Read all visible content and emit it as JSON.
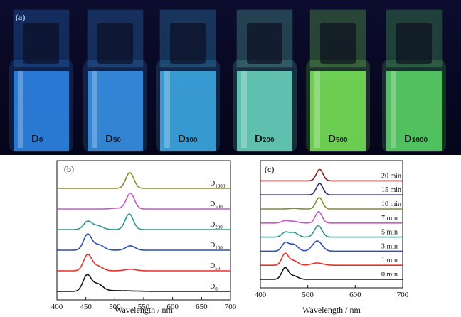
{
  "photo": {
    "panel_label": "(a)",
    "vials": [
      {
        "base": "D",
        "sub": "0",
        "color": "#2f8cf2"
      },
      {
        "base": "D",
        "sub": "50",
        "color": "#3a9bf3"
      },
      {
        "base": "D",
        "sub": "100",
        "color": "#3fb3ef"
      },
      {
        "base": "D",
        "sub": "200",
        "color": "#6fe0c8"
      },
      {
        "base": "D",
        "sub": "500",
        "color": "#7ef05a"
      },
      {
        "base": "D",
        "sub": "1000",
        "color": "#5fe06a"
      }
    ]
  },
  "chart_data": [
    {
      "type": "line",
      "panel_label": "(b)",
      "xlabel": "Wavelength / nm",
      "xlim": [
        400,
        700
      ],
      "xticks": [
        400,
        450,
        500,
        550,
        600,
        650,
        700
      ],
      "series": [
        {
          "name": "D0",
          "base": "D",
          "sub": "0",
          "color": "#111111",
          "peaks": [
            [
              452,
              1.0,
              7
            ],
            [
              470,
              0.45,
              9
            ],
            [
              500,
              0.05,
              30
            ]
          ]
        },
        {
          "name": "D50",
          "base": "D",
          "sub": "50",
          "color": "#e8302a",
          "peaks": [
            [
              453,
              1.0,
              7
            ],
            [
              470,
              0.3,
              9
            ],
            [
              527,
              0.1,
              10
            ]
          ]
        },
        {
          "name": "D100",
          "base": "D",
          "sub": "100",
          "color": "#2a4fb5",
          "peaks": [
            [
              453,
              1.0,
              7
            ],
            [
              472,
              0.35,
              9
            ],
            [
              527,
              0.28,
              8
            ]
          ]
        },
        {
          "name": "D200",
          "base": "D",
          "sub": "200",
          "color": "#2a9a8a",
          "peaks": [
            [
              453,
              0.5,
              7
            ],
            [
              470,
              0.25,
              9
            ],
            [
              525,
              1.0,
              7
            ]
          ]
        },
        {
          "name": "D500",
          "base": "D",
          "sub": "500",
          "color": "#c858c8",
          "peaks": [
            [
              527,
              1.0,
              7
            ],
            [
              505,
              0.05,
              10
            ]
          ]
        },
        {
          "name": "D1000",
          "base": "D",
          "sub": "1000",
          "color": "#8a8a30",
          "peaks": [
            [
              526,
              1.0,
              7
            ]
          ]
        }
      ]
    },
    {
      "type": "line",
      "panel_label": "(c)",
      "xlabel": "Wavelength / nm",
      "xlim": [
        400,
        700
      ],
      "xticks": [
        400,
        500,
        600,
        700
      ],
      "series": [
        {
          "name": "0 min",
          "color": "#111111",
          "peaks": [
            [
              452,
              1.0,
              7
            ],
            [
              470,
              0.3,
              9
            ]
          ]
        },
        {
          "name": "1 min",
          "color": "#e8302a",
          "peaks": [
            [
              452,
              1.0,
              7
            ],
            [
              470,
              0.4,
              9
            ],
            [
              520,
              0.2,
              12
            ]
          ]
        },
        {
          "name": "3 min",
          "color": "#2a4fb5",
          "peaks": [
            [
              452,
              0.7,
              7
            ],
            [
              470,
              0.6,
              9
            ],
            [
              520,
              0.9,
              10
            ]
          ]
        },
        {
          "name": "5 min",
          "color": "#2a9a8a",
          "peaks": [
            [
              452,
              0.4,
              7
            ],
            [
              470,
              0.4,
              9
            ],
            [
              522,
              1.0,
              8
            ]
          ]
        },
        {
          "name": "7 min",
          "color": "#c858c8",
          "peaks": [
            [
              452,
              0.2,
              7
            ],
            [
              470,
              0.15,
              9
            ],
            [
              523,
              1.0,
              7
            ]
          ]
        },
        {
          "name": "10 min",
          "color": "#8a8a30",
          "peaks": [
            [
              524,
              1.0,
              7
            ],
            [
              470,
              0.05,
              9
            ]
          ]
        },
        {
          "name": "15 min",
          "color": "#2a2a80",
          "peaks": [
            [
              525,
              1.0,
              7
            ]
          ]
        },
        {
          "name": "20 min",
          "color": "#8b1a1a",
          "peaks": [
            [
              525,
              1.0,
              7
            ]
          ]
        }
      ]
    }
  ]
}
